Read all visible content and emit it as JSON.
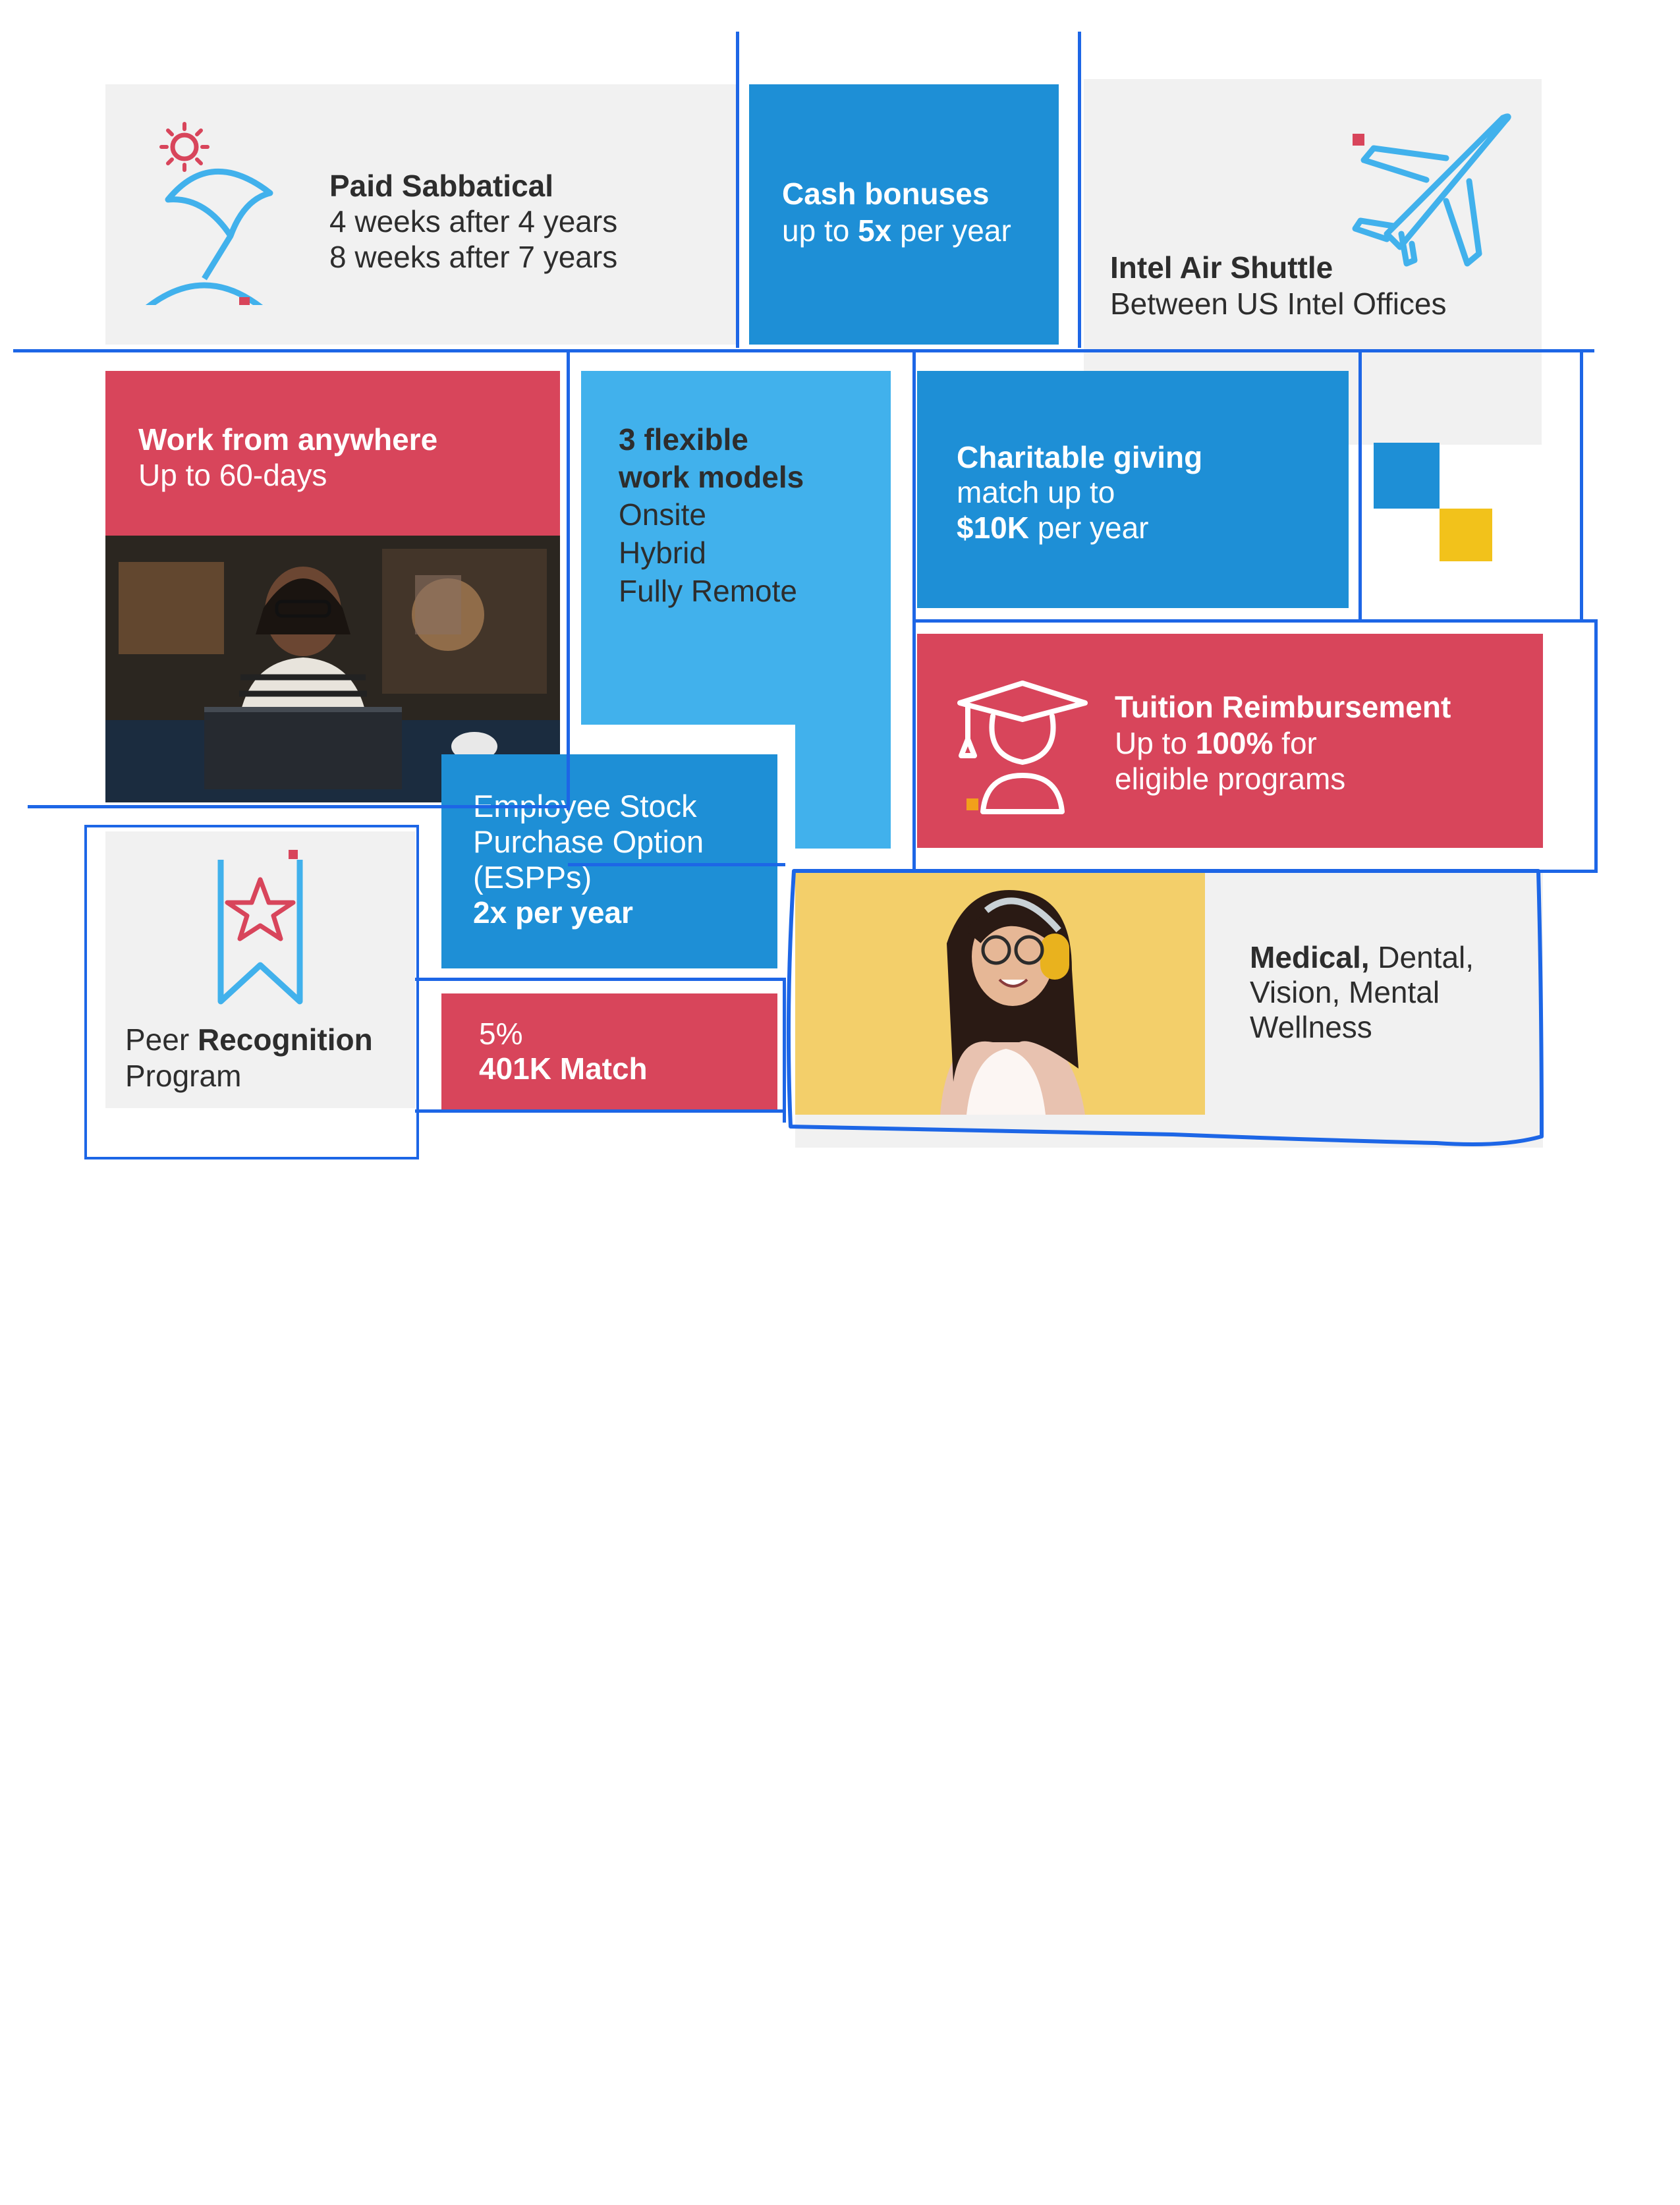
{
  "sabbatical": {
    "title": "Paid Sabbatical",
    "line1": "4 weeks after 4 years",
    "line2": "8 weeks after 7 years",
    "icon": "beach-umbrella-icon"
  },
  "cash_bonus": {
    "title": "Cash bonuses",
    "prefix": "up to ",
    "bold": "5x",
    "suffix": " per year"
  },
  "air_shuttle": {
    "title": "Intel Air Shuttle",
    "subtitle": "Between US Intel Offices",
    "icon": "airplane-icon"
  },
  "work_anywhere": {
    "title": "Work from anywhere",
    "subtitle": "Up to 60-days",
    "photo": "person-at-laptop-photo"
  },
  "work_models": {
    "title_line1": "3 flexible",
    "title_line2": "work models",
    "items": [
      "Onsite",
      "Hybrid",
      "Fully Remote"
    ]
  },
  "charitable": {
    "title": "Charitable giving",
    "line1": "match up to",
    "bold": "$10K",
    "suffix": " per year"
  },
  "tuition": {
    "title": "Tuition Reimbursement",
    "prefix": "Up to ",
    "bold": "100%",
    "suffix": " for",
    "line2": "eligible programs",
    "icon": "graduate-icon"
  },
  "espp": {
    "line1": "Employee Stock",
    "line2": "Purchase Option",
    "line3": "(ESPPs)",
    "bold": "2x per year"
  },
  "peer": {
    "prefix": "Peer ",
    "bold": "Recognition",
    "line2": "Program",
    "icon": "ribbon-star-icon"
  },
  "match401k": {
    "line1": "5%",
    "bold": "401K Match"
  },
  "medical": {
    "bold": "Medical,",
    "rest": " Dental,",
    "line2": "Vision, Mental",
    "line3": "Wellness",
    "photo": "woman-with-headphones-photo"
  },
  "colors": {
    "blue": "#1e8fd6",
    "sky": "#41b1ec",
    "red": "#d8455b",
    "yellow": "#f2c21b",
    "annotation": "#1d66e6"
  }
}
